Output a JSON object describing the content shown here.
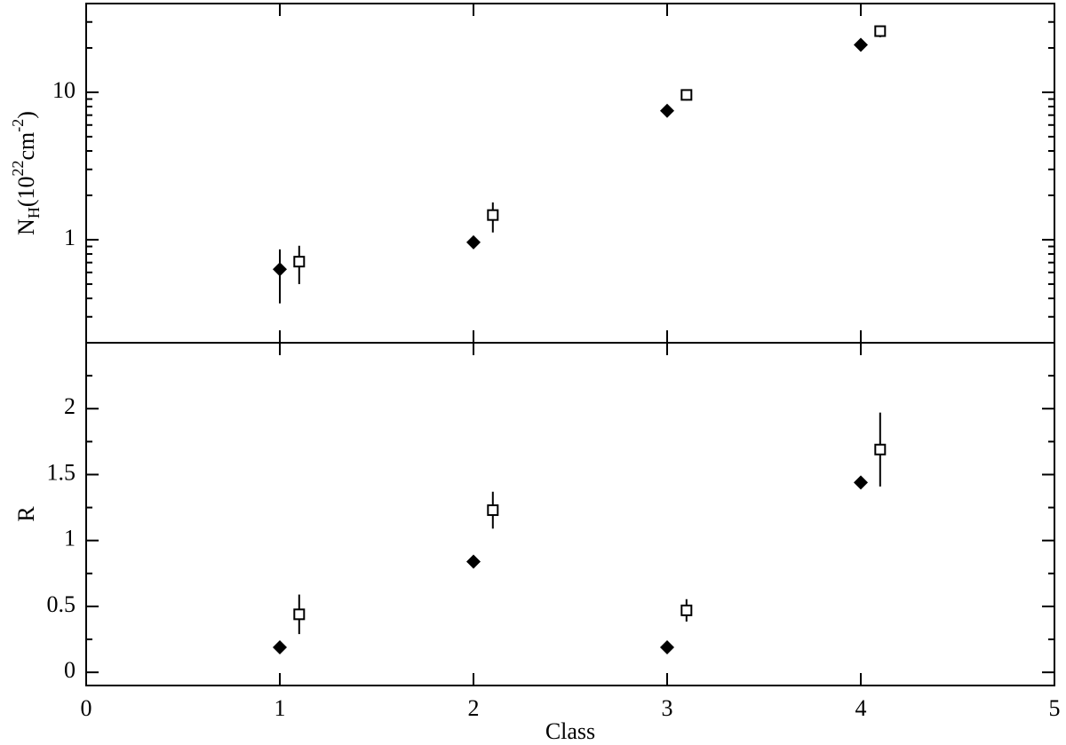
{
  "chart_data": [
    {
      "type": "scatter",
      "ylabel_parts": [
        "N",
        "H",
        "(10",
        "22",
        "cm",
        "-2",
        ")"
      ],
      "log_y": true,
      "xlim": [
        0,
        5
      ],
      "xticks": [
        0,
        1,
        2,
        3,
        4,
        5
      ],
      "show_xticklabels": false,
      "ylim": [
        0.2,
        40
      ],
      "yticks": [
        1,
        10
      ],
      "series": [
        {
          "marker": "diamond",
          "color": "#000000",
          "x": [
            1,
            2,
            3,
            4
          ],
          "values": [
            0.63,
            0.96,
            7.5,
            21
          ],
          "err_low": [
            0.26,
            null,
            null,
            null
          ],
          "err_high": [
            0.23,
            null,
            null,
            null
          ]
        },
        {
          "marker": "square",
          "color": "#000000",
          "x": [
            1.1,
            2.1,
            3.1,
            4.1
          ],
          "values": [
            0.71,
            1.47,
            9.6,
            26
          ],
          "err_low": [
            0.21,
            0.35,
            0.8,
            2.4
          ],
          "err_high": [
            0.2,
            0.32,
            0.8,
            2.3
          ]
        }
      ]
    },
    {
      "type": "scatter",
      "ylabel": "R",
      "xlabel": "Class",
      "log_y": false,
      "xlim": [
        0,
        5
      ],
      "xticks": [
        0,
        1,
        2,
        3,
        4,
        5
      ],
      "show_xticklabels": true,
      "ylim": [
        -0.1,
        2.5
      ],
      "yticks": [
        0,
        0.5,
        1,
        1.5,
        2
      ],
      "series": [
        {
          "marker": "diamond",
          "color": "#000000",
          "x": [
            1,
            2,
            3,
            4
          ],
          "values": [
            0.19,
            0.84,
            0.19,
            1.44
          ],
          "err_low": [
            null,
            null,
            null,
            null
          ],
          "err_high": [
            null,
            null,
            null,
            null
          ]
        },
        {
          "marker": "square",
          "color": "#000000",
          "x": [
            1.1,
            2.1,
            3.1,
            4.1
          ],
          "values": [
            0.44,
            1.23,
            0.47,
            1.69
          ],
          "err_low": [
            0.15,
            0.14,
            0.085,
            0.28
          ],
          "err_high": [
            0.15,
            0.14,
            0.085,
            0.28
          ]
        }
      ]
    }
  ]
}
